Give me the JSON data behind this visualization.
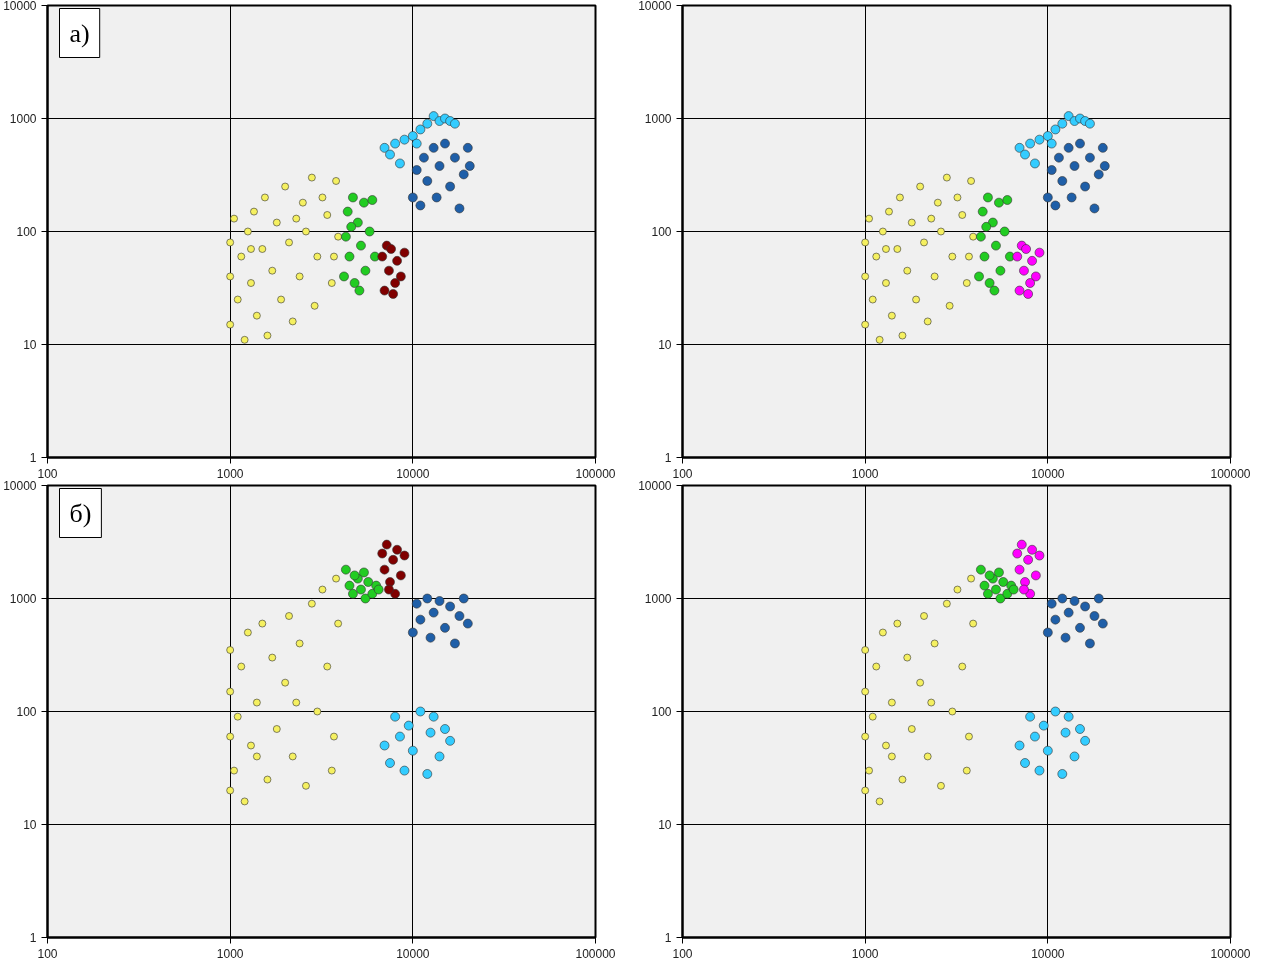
{
  "chart_data": [
    {
      "type": "scatter",
      "annotations": [
        "а)"
      ],
      "xlim": [
        100,
        100000
      ],
      "ylim": [
        1,
        10000
      ],
      "xticks": [
        100,
        1000,
        10000,
        100000
      ],
      "yticks": [
        1,
        10,
        100,
        1000,
        10000
      ],
      "log": "xy",
      "grid": true,
      "marker": "circle",
      "series": [
        {
          "color": "#f5f060",
          "x": [
            1000,
            1000,
            1000,
            1050,
            1100,
            1150,
            1200,
            1250,
            1300,
            1350,
            1400,
            1500,
            1550,
            1600,
            1700,
            1800,
            1900,
            2000,
            2100,
            2200,
            2400,
            2500,
            2600,
            2800,
            2900,
            3000,
            3200,
            3400,
            3600,
            3800,
            3900,
            3700,
            2300,
            1300
          ],
          "values": [
            15,
            40,
            80,
            130,
            25,
            60,
            11,
            100,
            35,
            150,
            18,
            70,
            200,
            12,
            45,
            120,
            25,
            250,
            80,
            16,
            40,
            180,
            100,
            300,
            22,
            60,
            200,
            140,
            35,
            280,
            90,
            60,
            130,
            70
          ]
        },
        {
          "color": "#22cc22",
          "x": [
            4200,
            4300,
            4400,
            4500,
            4700,
            4800,
            5000,
            5200,
            5400,
            5500,
            5800,
            6000,
            6200,
            5100,
            4600
          ],
          "values": [
            40,
            90,
            150,
            60,
            200,
            35,
            120,
            75,
            180,
            45,
            100,
            190,
            60,
            30,
            110
          ]
        },
        {
          "color": "#800000",
          "x": [
            6800,
            7000,
            7200,
            7400,
            7800,
            8200,
            8600,
            9000,
            7600,
            8000
          ],
          "values": [
            60,
            30,
            75,
            45,
            28,
            55,
            40,
            65,
            70,
            35
          ]
        },
        {
          "color": "#33ccff",
          "x": [
            7000,
            7500,
            8000,
            8500,
            9000,
            10000,
            11000,
            12000,
            13000,
            14000,
            15000,
            16000,
            10500,
            17000
          ],
          "values": [
            550,
            480,
            600,
            400,
            650,
            700,
            800,
            900,
            1050,
            950,
            1000,
            950,
            600,
            900
          ]
        },
        {
          "color": "#1f5fa8",
          "x": [
            10000,
            10500,
            11000,
            11500,
            12000,
            13000,
            13500,
            14000,
            15000,
            16000,
            17000,
            18000,
            19000,
            20000,
            20500
          ],
          "values": [
            200,
            350,
            170,
            450,
            280,
            550,
            200,
            380,
            600,
            250,
            450,
            160,
            320,
            550,
            380
          ]
        }
      ]
    },
    {
      "type": "scatter",
      "xlim": [
        100,
        100000
      ],
      "ylim": [
        1,
        10000
      ],
      "xticks": [
        100,
        1000,
        10000,
        100000
      ],
      "yticks": [
        1,
        10,
        100,
        1000,
        10000
      ],
      "log": "xy",
      "grid": true,
      "marker": "circle",
      "series": [
        {
          "color": "#f5f060",
          "x": [
            1000,
            1000,
            1000,
            1050,
            1100,
            1150,
            1200,
            1250,
            1300,
            1350,
            1400,
            1500,
            1550,
            1600,
            1700,
            1800,
            1900,
            2000,
            2100,
            2200,
            2400,
            2500,
            2600,
            2800,
            2900,
            3000,
            3200,
            3400,
            3600,
            3800,
            3900,
            3700,
            2300,
            1300
          ],
          "values": [
            15,
            40,
            80,
            130,
            25,
            60,
            11,
            100,
            35,
            150,
            18,
            70,
            200,
            12,
            45,
            120,
            25,
            250,
            80,
            16,
            40,
            180,
            100,
            300,
            22,
            60,
            200,
            140,
            35,
            280,
            90,
            60,
            130,
            70
          ]
        },
        {
          "color": "#22cc22",
          "x": [
            4200,
            4300,
            4400,
            4500,
            4700,
            4800,
            5000,
            5200,
            5400,
            5500,
            5800,
            6000,
            6200,
            5100,
            4600
          ],
          "values": [
            40,
            90,
            150,
            60,
            200,
            35,
            120,
            75,
            180,
            45,
            100,
            190,
            60,
            30,
            110
          ]
        },
        {
          "color": "#ff00ff",
          "x": [
            6800,
            7000,
            7200,
            7400,
            7800,
            8200,
            8600,
            9000,
            7600,
            8000
          ],
          "values": [
            60,
            30,
            75,
            45,
            28,
            55,
            40,
            65,
            70,
            35
          ]
        },
        {
          "color": "#33ccff",
          "x": [
            7000,
            7500,
            8000,
            8500,
            9000,
            10000,
            11000,
            12000,
            13000,
            14000,
            15000,
            16000,
            10500,
            17000
          ],
          "values": [
            550,
            480,
            600,
            400,
            650,
            700,
            800,
            900,
            1050,
            950,
            1000,
            950,
            600,
            900
          ]
        },
        {
          "color": "#1f5fa8",
          "x": [
            10000,
            10500,
            11000,
            11500,
            12000,
            13000,
            13500,
            14000,
            15000,
            16000,
            17000,
            18000,
            19000,
            20000,
            20500
          ],
          "values": [
            200,
            350,
            170,
            450,
            280,
            550,
            200,
            380,
            600,
            250,
            450,
            160,
            320,
            550,
            380
          ]
        }
      ]
    },
    {
      "type": "scatter",
      "annotations": [
        "б)"
      ],
      "xlim": [
        100,
        100000
      ],
      "ylim": [
        1,
        10000
      ],
      "xticks": [
        100,
        1000,
        10000,
        100000
      ],
      "yticks": [
        1,
        10,
        100,
        1000,
        10000
      ],
      "log": "xy",
      "grid": true,
      "marker": "circle",
      "series": [
        {
          "color": "#f5f060",
          "x": [
            1000,
            1000,
            1000,
            1000,
            1050,
            1100,
            1150,
            1200,
            1250,
            1300,
            1400,
            1500,
            1600,
            1700,
            1800,
            2000,
            2100,
            2200,
            2400,
            2600,
            2800,
            3000,
            3200,
            3400,
            3600,
            3800,
            3900,
            3700,
            2300,
            1400
          ],
          "values": [
            20,
            60,
            150,
            350,
            30,
            90,
            250,
            16,
            500,
            50,
            120,
            600,
            25,
            300,
            70,
            180,
            700,
            40,
            400,
            22,
            900,
            100,
            1200,
            250,
            30,
            1500,
            600,
            60,
            120,
            40
          ]
        },
        {
          "color": "#22cc22",
          "x": [
            4300,
            4500,
            4700,
            5000,
            5200,
            5500,
            5700,
            6000,
            6300,
            4800,
            5400,
            6500
          ],
          "values": [
            1800,
            1300,
            1100,
            1500,
            1200,
            1000,
            1400,
            1100,
            1300,
            1600,
            1700,
            1200
          ]
        },
        {
          "color": "#800000",
          "x": [
            6800,
            7000,
            7200,
            7500,
            7800,
            8000,
            8200,
            8600,
            9000,
            7400
          ],
          "values": [
            2500,
            1800,
            3000,
            1400,
            2200,
            1100,
            2700,
            1600,
            2400,
            1200
          ]
        },
        {
          "color": "#1f5fa8",
          "x": [
            10000,
            10500,
            11000,
            12000,
            12500,
            13000,
            14000,
            15000,
            16000,
            17000,
            18000,
            19000,
            20000
          ],
          "values": [
            500,
            900,
            650,
            1000,
            450,
            750,
            950,
            550,
            850,
            400,
            700,
            1000,
            600
          ]
        },
        {
          "color": "#33ccff",
          "x": [
            7000,
            7500,
            8000,
            8500,
            9000,
            9500,
            10000,
            11000,
            12000,
            12500,
            13000,
            14000,
            15000,
            16000
          ],
          "values": [
            50,
            35,
            90,
            60,
            30,
            75,
            45,
            100,
            28,
            65,
            90,
            40,
            70,
            55
          ]
        }
      ]
    },
    {
      "type": "scatter",
      "xlim": [
        100,
        100000
      ],
      "ylim": [
        1,
        10000
      ],
      "xticks": [
        100,
        1000,
        10000,
        100000
      ],
      "yticks": [
        1,
        10,
        100,
        1000,
        10000
      ],
      "log": "xy",
      "grid": true,
      "marker": "circle",
      "series": [
        {
          "color": "#f5f060",
          "x": [
            1000,
            1000,
            1000,
            1000,
            1050,
            1100,
            1150,
            1200,
            1250,
            1300,
            1400,
            1500,
            1600,
            1700,
            1800,
            2000,
            2100,
            2200,
            2400,
            2600,
            2800,
            3000,
            3200,
            3400,
            3600,
            3800,
            3900,
            3700,
            2300,
            1400
          ],
          "values": [
            20,
            60,
            150,
            350,
            30,
            90,
            250,
            16,
            500,
            50,
            120,
            600,
            25,
            300,
            70,
            180,
            700,
            40,
            400,
            22,
            900,
            100,
            1200,
            250,
            30,
            1500,
            600,
            60,
            120,
            40
          ]
        },
        {
          "color": "#22cc22",
          "x": [
            4300,
            4500,
            4700,
            5000,
            5200,
            5500,
            5700,
            6000,
            6300,
            4800,
            5400,
            6500
          ],
          "values": [
            1800,
            1300,
            1100,
            1500,
            1200,
            1000,
            1400,
            1100,
            1300,
            1600,
            1700,
            1200
          ]
        },
        {
          "color": "#ff00ff",
          "x": [
            6800,
            7000,
            7200,
            7500,
            7800,
            8000,
            8200,
            8600,
            9000,
            7400
          ],
          "values": [
            2500,
            1800,
            3000,
            1400,
            2200,
            1100,
            2700,
            1600,
            2400,
            1200
          ]
        },
        {
          "color": "#1f5fa8",
          "x": [
            10000,
            10500,
            11000,
            12000,
            12500,
            13000,
            14000,
            15000,
            16000,
            17000,
            18000,
            19000,
            20000
          ],
          "values": [
            500,
            900,
            650,
            1000,
            450,
            750,
            950,
            550,
            850,
            400,
            700,
            1000,
            600
          ]
        },
        {
          "color": "#33ccff",
          "x": [
            7000,
            7500,
            8000,
            8500,
            9000,
            9500,
            10000,
            11000,
            12000,
            12500,
            13000,
            14000,
            15000,
            16000
          ],
          "values": [
            50,
            35,
            90,
            60,
            30,
            75,
            45,
            100,
            28,
            65,
            90,
            40,
            70,
            55
          ]
        }
      ]
    }
  ]
}
